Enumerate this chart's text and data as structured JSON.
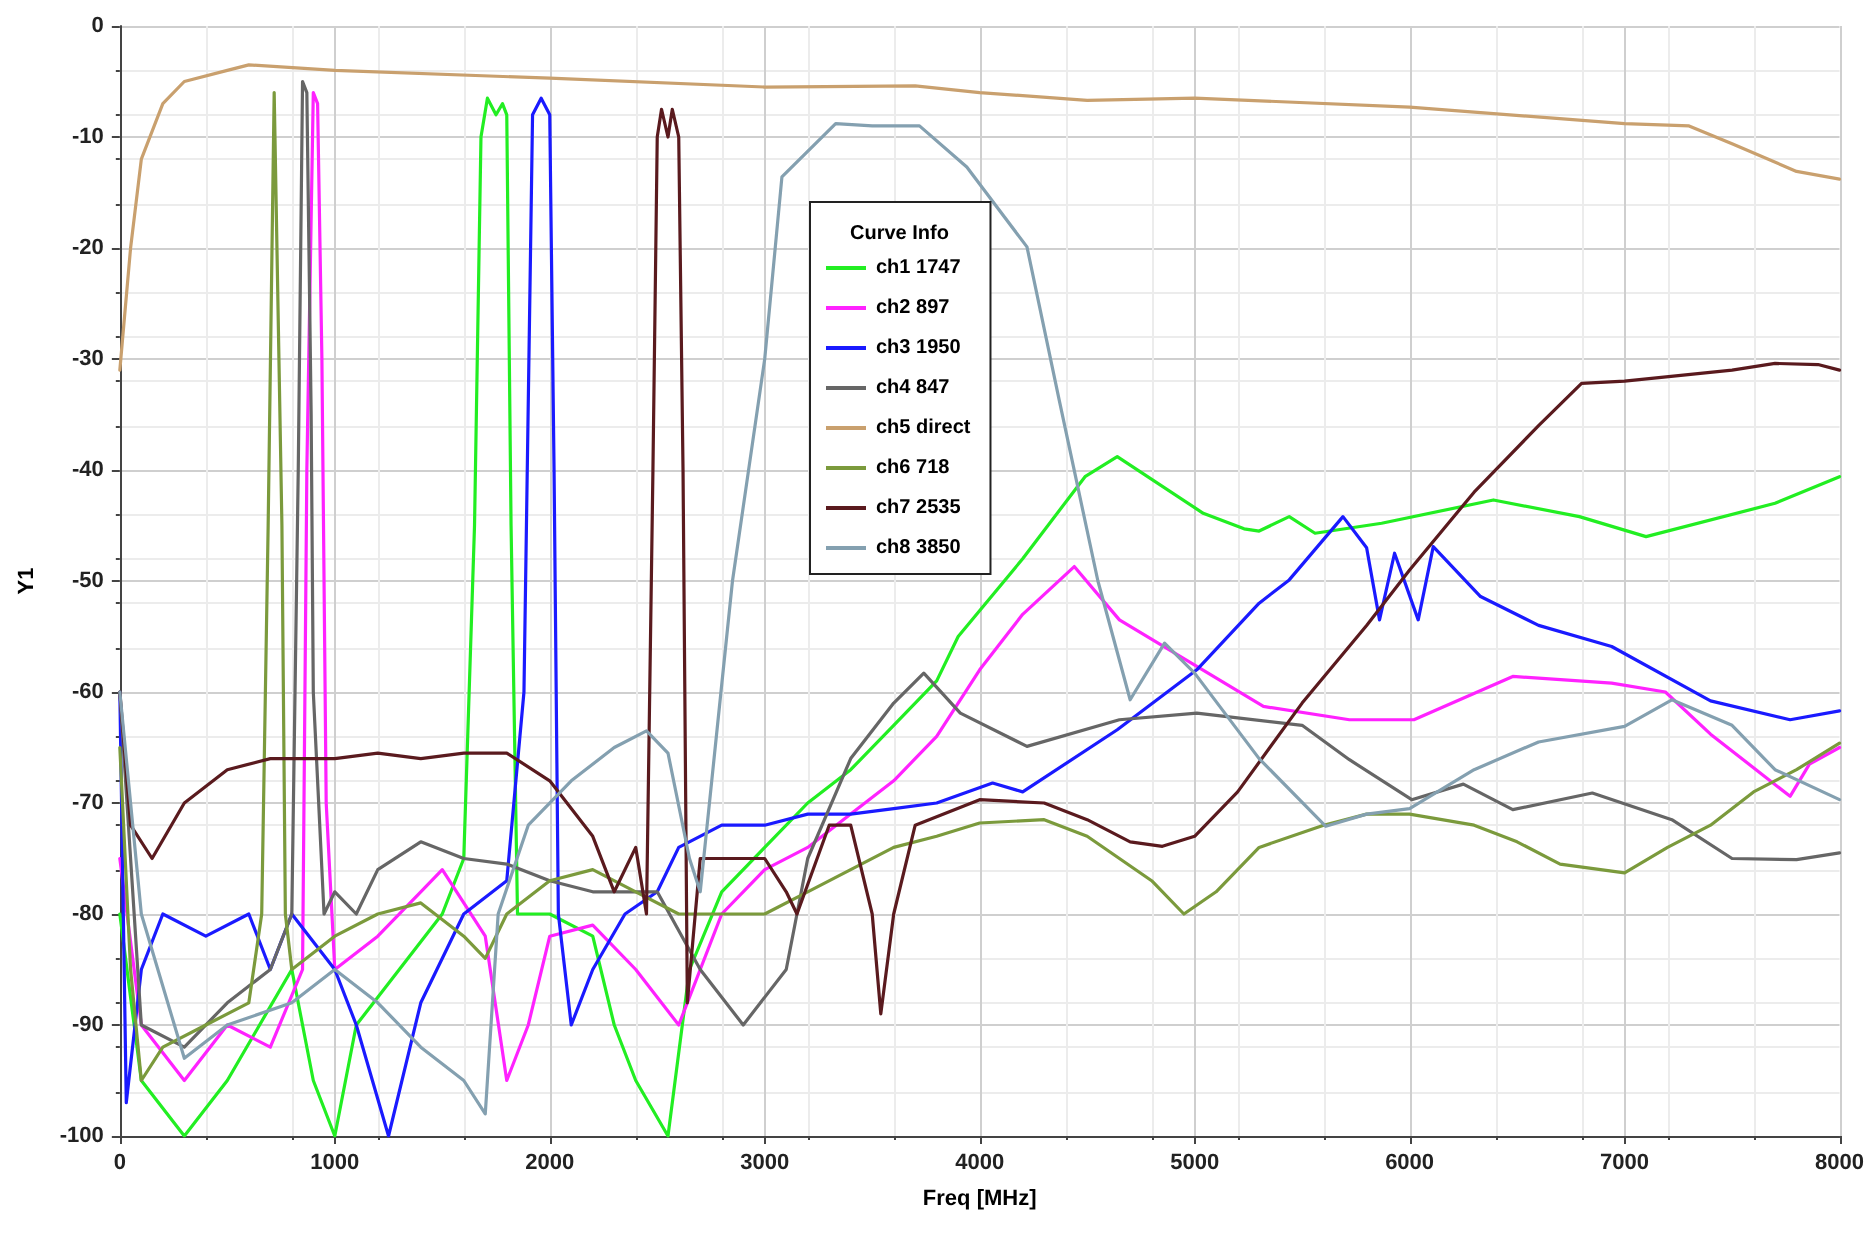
{
  "chart_data": {
    "type": "line",
    "xlabel": "Freq [MHz]",
    "ylabel": "Y1",
    "legend_title": "Curve Info",
    "xlim": [
      0,
      8000
    ],
    "xticks": [
      0,
      1000,
      2000,
      3000,
      4000,
      5000,
      6000,
      7000,
      8000
    ],
    "ylim": [
      -100,
      0
    ],
    "yticks": [
      -100,
      -90,
      -80,
      -70,
      -60,
      -50,
      -40,
      -30,
      -20,
      -10,
      0
    ],
    "grid": true,
    "legend": "top center",
    "marker": "none",
    "line_style": "solid",
    "series": [
      {
        "name": "ch1 1747",
        "color": "#22ee22",
        "x": [
          0,
          100,
          300,
          500,
          800,
          900,
          1000,
          1100,
          1300,
          1500,
          1600,
          1650,
          1680,
          1710,
          1750,
          1780,
          1800,
          1820,
          1850,
          2000,
          2200,
          2300,
          2400,
          2550,
          2650,
          2800,
          3000,
          3200,
          3400,
          3600,
          3800,
          3900,
          4200,
          4490,
          4640,
          5040,
          5230,
          5300,
          5440,
          5560,
          5870,
          6390,
          6790,
          7100,
          7700,
          8000
        ],
        "values": [
          -80,
          -95,
          -100,
          -95,
          -85,
          -95,
          -100,
          -90,
          -85,
          -80,
          -75,
          -45,
          -10,
          -6.5,
          -8,
          -7,
          -8,
          -45,
          -80,
          -80,
          -82,
          -90,
          -95,
          -100,
          -85,
          -78,
          -74,
          -70,
          -67,
          -63,
          -59,
          -55,
          -48,
          -40.6,
          -38.8,
          -43.9,
          -45.3,
          -45.5,
          -44.2,
          -45.7,
          -44.8,
          -42.7,
          -44.2,
          -46,
          -43,
          -40.6
        ]
      },
      {
        "name": "ch2 897",
        "color": "#ff22ff",
        "x": [
          0,
          100,
          300,
          500,
          700,
          850,
          870,
          900,
          920,
          940,
          960,
          1000,
          1200,
          1400,
          1500,
          1700,
          1800,
          1900,
          2000,
          2200,
          2400,
          2600,
          2800,
          3000,
          3200,
          3400,
          3600,
          3800,
          4000,
          4200,
          4440,
          4650,
          5320,
          5720,
          6020,
          6480,
          6940,
          7190,
          7400,
          7770,
          7860,
          8000
        ],
        "values": [
          -75,
          -90,
          -95,
          -90,
          -92,
          -85,
          -40,
          -6,
          -7,
          -30,
          -70,
          -85,
          -82,
          -78,
          -76,
          -82,
          -95,
          -90,
          -82,
          -81,
          -85,
          -90,
          -80,
          -76,
          -74,
          -71,
          -68,
          -64,
          -58,
          -53,
          -48.7,
          -53.5,
          -61.3,
          -62.5,
          -62.5,
          -58.6,
          -59.2,
          -60,
          -63.8,
          -69.4,
          -66.5,
          -65
        ]
      },
      {
        "name": "ch3 1950",
        "color": "#1a1aff",
        "x": [
          0,
          30,
          100,
          200,
          400,
          600,
          700,
          800,
          1000,
          1100,
          1250,
          1400,
          1600,
          1800,
          1880,
          1920,
          1960,
          2000,
          2020,
          2040,
          2100,
          2200,
          2350,
          2500,
          2600,
          2800,
          3000,
          3200,
          3400,
          3600,
          3800,
          4060,
          4200,
          4640,
          5010,
          5300,
          5440,
          5690,
          5800,
          5860,
          5930,
          6040,
          6110,
          6330,
          6600,
          6940,
          7400,
          7770,
          8000
        ],
        "values": [
          -60,
          -97,
          -85,
          -80,
          -82,
          -80,
          -85,
          -80,
          -85,
          -90,
          -100,
          -88,
          -80,
          -77,
          -60,
          -8,
          -6.5,
          -8,
          -40,
          -80,
          -90,
          -85,
          -80,
          -78,
          -74,
          -72,
          -72,
          -71,
          -71,
          -70.5,
          -70,
          -68.2,
          -69,
          -63.4,
          -58,
          -52,
          -49.9,
          -44.2,
          -47,
          -53.5,
          -47.5,
          -53.5,
          -46.9,
          -51.4,
          -54,
          -55.9,
          -60.8,
          -62.5,
          -61.7
        ]
      },
      {
        "name": "ch4 847",
        "color": "#666666",
        "x": [
          0,
          100,
          300,
          500,
          700,
          800,
          830,
          850,
          870,
          890,
          900,
          950,
          1000,
          1100,
          1200,
          1400,
          1600,
          1800,
          2000,
          2200,
          2500,
          2700,
          2900,
          3100,
          3200,
          3400,
          3600,
          3740,
          3910,
          4220,
          4650,
          5010,
          5500,
          5720,
          6010,
          6250,
          6480,
          6850,
          7220,
          7500,
          7800,
          8000
        ],
        "values": [
          -60,
          -90,
          -92,
          -88,
          -85,
          -80,
          -40,
          -5,
          -6,
          -35,
          -60,
          -80,
          -78,
          -80,
          -76,
          -73.5,
          -75,
          -75.5,
          -77,
          -78,
          -78,
          -85,
          -90,
          -85,
          -75,
          -66,
          -61,
          -58.3,
          -61.9,
          -64.9,
          -62.5,
          -61.9,
          -63,
          -66.1,
          -69.7,
          -68.3,
          -70.6,
          -69.1,
          -71.5,
          -75,
          -75.1,
          -74.5
        ]
      },
      {
        "name": "ch5 direct",
        "color": "#c9a06e",
        "x": [
          0,
          50,
          100,
          200,
          300,
          500,
          600,
          1000,
          2000,
          3000,
          3700,
          4000,
          4500,
          5000,
          6000,
          7000,
          7300,
          7500,
          7800,
          8000
        ],
        "values": [
          -31,
          -20,
          -12,
          -7,
          -5,
          -4,
          -3.5,
          -4,
          -4.7,
          -5.5,
          -5.4,
          -6,
          -6.7,
          -6.5,
          -7.3,
          -8.8,
          -9,
          -10.6,
          -13.1,
          -13.8
        ]
      },
      {
        "name": "ch6 718",
        "color": "#7b9a3c",
        "x": [
          0,
          50,
          100,
          200,
          400,
          600,
          660,
          690,
          718,
          754,
          770,
          800,
          1000,
          1200,
          1400,
          1600,
          1700,
          1800,
          2000,
          2200,
          2400,
          2600,
          2800,
          3000,
          3200,
          3400,
          3600,
          3800,
          4000,
          4300,
          4500,
          4800,
          4950,
          5100,
          5300,
          5600,
          5800,
          6000,
          6300,
          6500,
          6700,
          7000,
          7200,
          7400,
          7600,
          7800,
          8000
        ],
        "values": [
          -65,
          -85,
          -95,
          -92,
          -90,
          -88,
          -80,
          -45,
          -6,
          -45,
          -80,
          -85,
          -82,
          -80,
          -79,
          -82,
          -84,
          -80,
          -77,
          -76,
          -78,
          -80,
          -80,
          -80,
          -78,
          -76,
          -74,
          -73,
          -71.8,
          -71.5,
          -73,
          -77,
          -80,
          -78,
          -74,
          -72,
          -71,
          -71,
          -72,
          -73.5,
          -75.5,
          -76.3,
          -74,
          -72,
          -69,
          -67,
          -64.6
        ]
      },
      {
        "name": "ch7 2535",
        "color": "#5a1a1e",
        "x": [
          0,
          50,
          150,
          300,
          500,
          700,
          1000,
          1200,
          1400,
          1600,
          1800,
          2000,
          2200,
          2300,
          2400,
          2450,
          2480,
          2500,
          2520,
          2550,
          2570,
          2600,
          2620,
          2640,
          2700,
          2800,
          3000,
          3100,
          3150,
          3300,
          3400,
          3500,
          3540,
          3600,
          3700,
          4000,
          4300,
          4500,
          4700,
          4850,
          5000,
          5200,
          5500,
          5800,
          6000,
          6300,
          6600,
          6800,
          7000,
          7500,
          7700,
          7900,
          8000
        ],
        "values": [
          -60,
          -72,
          -75,
          -70,
          -67,
          -66,
          -66,
          -65.5,
          -66,
          -65.5,
          -65.5,
          -68,
          -73,
          -78,
          -74,
          -80,
          -40,
          -10,
          -7.5,
          -10,
          -7.5,
          -10,
          -40,
          -88,
          -75,
          -75,
          -75,
          -78,
          -80,
          -72,
          -72,
          -80,
          -89,
          -80,
          -72,
          -69.7,
          -70,
          -71.5,
          -73.5,
          -73.9,
          -73,
          -69,
          -61,
          -54,
          -49,
          -42,
          -36,
          -32.2,
          -32,
          -31,
          -30.4,
          -30.5,
          -31
        ]
      },
      {
        "name": "ch8 3850",
        "color": "#84a0b0",
        "x": [
          0,
          100,
          300,
          500,
          800,
          1000,
          1200,
          1400,
          1600,
          1700,
          1760,
          1900,
          2100,
          2300,
          2450,
          2550,
          2650,
          2700,
          2850,
          3000,
          3080,
          3330,
          3500,
          3720,
          3940,
          4220,
          4370,
          4550,
          4700,
          4860,
          5000,
          5300,
          5610,
          5800,
          6000,
          6300,
          6600,
          7000,
          7220,
          7500,
          7700,
          8000
        ],
        "values": [
          -60,
          -80,
          -93,
          -90,
          -88,
          -85,
          -88,
          -92,
          -95,
          -98,
          -80,
          -72,
          -68,
          -65,
          -63.5,
          -65.5,
          -75,
          -78,
          -50,
          -30,
          -13.6,
          -8.8,
          -9,
          -9,
          -12.7,
          -19.9,
          -33.7,
          -50,
          -60.7,
          -55.6,
          -58.3,
          -66,
          -72.1,
          -71,
          -70.5,
          -67,
          -64.5,
          -63.1,
          -60.7,
          -63,
          -67,
          -69.7
        ]
      }
    ]
  }
}
